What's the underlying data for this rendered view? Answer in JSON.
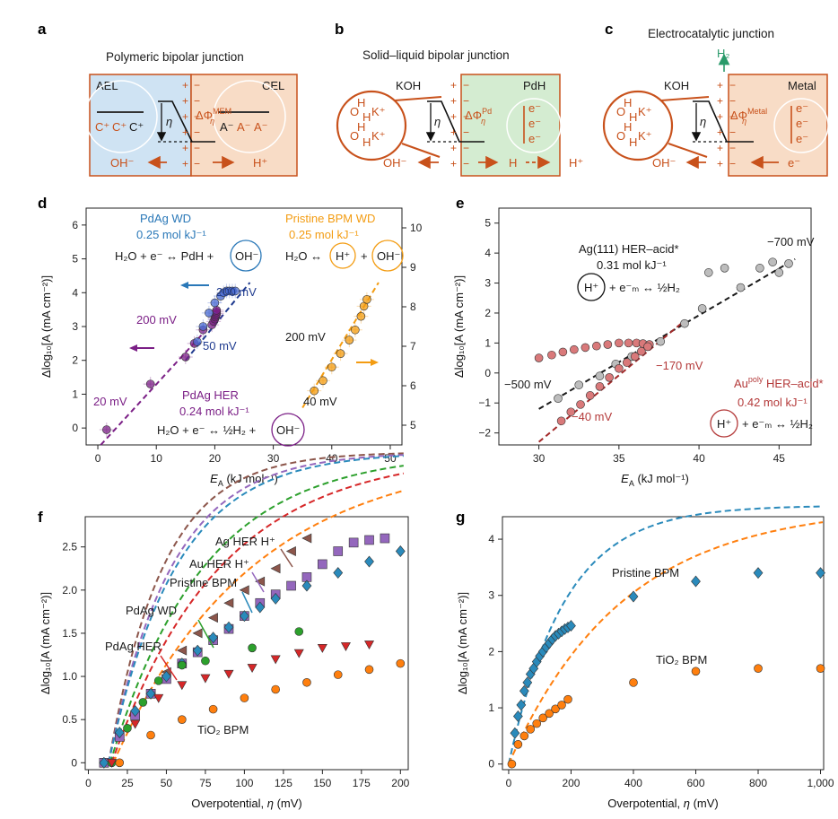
{
  "colors": {
    "orange": "#c8511b",
    "blue_box": "#cfe3f3",
    "orange_box": "#f8dcc6",
    "green_box": "#d4ecd1",
    "purple": "#7b1f86",
    "navy": "#1f3b8f",
    "gold": "#f39c12",
    "grey": "#9a9a9a",
    "red": "#b43a3a",
    "teal_blue": "#2a8abb",
    "violet": "#9467bd",
    "brown": "#8c564b",
    "green": "#2ca02c",
    "crimson": "#d62728",
    "darkorange": "#ff7f0e"
  },
  "panel_a": {
    "letter": "a",
    "title": "Polymeric bipolar junction",
    "left": "AEL",
    "right": "CEL",
    "c_plus": "C⁺",
    "a_minus": "A⁻",
    "eta": "η",
    "phi": "ΔΦ",
    "phi_sup": "MEM",
    "phi_sub": "η",
    "left_ion": "OH⁻",
    "right_ion": "H⁺",
    "plus": "+",
    "minus": "−"
  },
  "panel_b": {
    "letter": "b",
    "title": "Solid–liquid bipolar junction",
    "left": "KOH",
    "right": "PdH",
    "o": "O",
    "h": "H",
    "k": "K⁺",
    "e": "e⁻",
    "eta": "η",
    "phi": "ΔΦ",
    "phi_sup": "Pd",
    "phi_sub": "η",
    "left_ion": "OH⁻",
    "mid": "H",
    "right_ion": "H⁺",
    "plus": "+",
    "minus": "−"
  },
  "panel_c": {
    "letter": "c",
    "title": "Electrocatalytic junction",
    "h2": "H₂",
    "left": "KOH",
    "right": "Metal",
    "o": "O",
    "h": "H",
    "k": "K⁺",
    "e": "e⁻",
    "eta": "η",
    "phi": "ΔΦ",
    "phi_sup": "Metal",
    "phi_sub": "η",
    "left_ion": "OH⁻",
    "right_ion": "e⁻",
    "plus": "+",
    "minus": "−"
  },
  "chart_data": [
    {
      "id": "d",
      "type": "scatter",
      "letter": "d",
      "xlabel": "E",
      "xlabel_sub": "A",
      "xlabel_unit": " (kJ mol⁻¹)",
      "ylabel": "Δlog₁₀[A (mA cm⁻²)]",
      "xlim": [
        -2,
        52
      ],
      "ylim": [
        -0.5,
        6.5
      ],
      "y2lim": [
        4.5,
        10.5
      ],
      "xticks": [
        0,
        10,
        20,
        30,
        40,
        50
      ],
      "yticks": [
        0,
        1,
        2,
        3,
        4,
        5,
        6
      ],
      "y2ticks": [
        5,
        6,
        7,
        8,
        9,
        10
      ],
      "series": [
        {
          "name": "PdAg HER",
          "color": "#7b1f86",
          "x": [
            1.5,
            9,
            15,
            16.5,
            18,
            19.5,
            19.8,
            20,
            20.1,
            20.2,
            20.3,
            20.3,
            20.3
          ],
          "y": [
            -0.05,
            1.3,
            2.1,
            2.5,
            2.9,
            3.05,
            3.15,
            3.22,
            3.28,
            3.33,
            3.38,
            3.43,
            3.48
          ]
        },
        {
          "name": "PdAg WD",
          "color": "#4a6bd1",
          "x": [
            17,
            18,
            19,
            20,
            21,
            21.5,
            22,
            22.5,
            23,
            23.5
          ],
          "y": [
            2.55,
            3.0,
            3.4,
            3.7,
            3.9,
            4.0,
            4.05,
            4.05,
            4.05,
            4.05
          ]
        },
        {
          "name": "Pristine BPM WD",
          "color": "#f39c12",
          "x": [
            37,
            38.5,
            40,
            41.5,
            43,
            44,
            45,
            45.5,
            46
          ],
          "y": [
            1.1,
            1.4,
            1.8,
            2.2,
            2.6,
            2.9,
            3.3,
            3.6,
            3.8
          ]
        }
      ],
      "fits": [
        {
          "color": "#7b1f86",
          "x": [
            0.5,
            18
          ],
          "y": [
            -0.5,
            2.8
          ]
        },
        {
          "color": "#1f3b8f",
          "x": [
            15,
            26
          ],
          "y": [
            2.0,
            4.3
          ]
        },
        {
          "color": "#f39c12",
          "x": [
            35,
            48
          ],
          "y": [
            0.6,
            4.3
          ]
        }
      ],
      "labels": {
        "pdag_wd": "PdAg WD",
        "pdag_wd_val": "0.25 mol kJ⁻¹",
        "wd_eq1": "H₂O + e⁻ ↔ PdH +",
        "oh": "OH⁻",
        "bpm_wd": "Pristine BPM WD",
        "bpm_wd_val": "0.25 mol kJ⁻¹",
        "bpm_eq": "H₂O ↔",
        "hplus": "H⁺",
        "plus": "+",
        "pdag_her": "PdAg HER",
        "pdag_her_val": "0.24 mol kJ⁻¹",
        "her_eq": "H₂O + e⁻ ↔ ½H₂ +",
        "mv200a": "200 mV",
        "mv200b": "200 mV",
        "mv50": "50 mV",
        "mv20": "20 mV",
        "mv200c": "200 mV",
        "mv40": "40 mV"
      }
    },
    {
      "id": "e",
      "type": "scatter",
      "letter": "e",
      "xlabel": "E",
      "xlabel_sub": "A",
      "xlabel_unit": " (kJ mol⁻¹)",
      "ylabel": "Δlog₁₀[A (mA cm⁻²)]",
      "xlim": [
        27.5,
        47
      ],
      "ylim": [
        -2.4,
        5.5
      ],
      "xticks": [
        30,
        35,
        40,
        45
      ],
      "yticks": [
        -2,
        -1,
        0,
        1,
        2,
        3,
        4,
        5
      ],
      "series": [
        {
          "name": "Ag(111) HER-acid*",
          "color": "#bdbdbd",
          "x": [
            31.2,
            32.5,
            33.8,
            34.8,
            35.8,
            36.6,
            37.6,
            39.1,
            40.2,
            40.6,
            41.6,
            42.6,
            43.8,
            44.6,
            45,
            45.6
          ],
          "y": [
            -0.85,
            -0.4,
            -0.1,
            0.3,
            0.55,
            0.9,
            1.05,
            1.65,
            2.15,
            3.35,
            3.5,
            2.85,
            3.5,
            3.7,
            3.35,
            3.65
          ]
        },
        {
          "name": "Au poly HER-acid*",
          "color": "#d9797a",
          "x": [
            30,
            30.8,
            31.5,
            32.2,
            32.9,
            33.6,
            34.3,
            35,
            35.6,
            36.1,
            36.5,
            36.9,
            31.4,
            32,
            32.6,
            33.2,
            33.8,
            34.4,
            35,
            35.5,
            36,
            36.4,
            36.8
          ],
          "y": [
            0.5,
            0.6,
            0.7,
            0.78,
            0.85,
            0.9,
            0.95,
            1.0,
            1.0,
            1.0,
            0.98,
            0.95,
            -1.6,
            -1.3,
            -1.05,
            -0.75,
            -0.45,
            -0.15,
            0.15,
            0.35,
            0.55,
            0.72,
            0.88
          ]
        }
      ],
      "fits": [
        {
          "color": "#1a1a1a",
          "x": [
            30,
            46
          ],
          "y": [
            -1.2,
            3.8
          ]
        },
        {
          "color": "#a32a2a",
          "x": [
            30,
            39
          ],
          "y": [
            -2.3,
            1.7
          ]
        }
      ],
      "labels": {
        "ag": "Ag(111) HER–acid*",
        "ag_val": "0.31 mol kJ⁻¹",
        "ag_eq": "+ e⁻ₘ ↔ ½H₂",
        "hplus": "H⁺",
        "au": "Au",
        "au_sup": "poly",
        "au_rest": " HER–acid*",
        "au_val": "0.42 mol kJ⁻¹",
        "au_eq": "+ e⁻ₘ ↔ ½H₂",
        "mv700": "−700 mV",
        "mv500": "−500 mV",
        "mv170": "−170 mV",
        "mv40": "−40 mV"
      }
    },
    {
      "id": "f",
      "type": "scatter",
      "letter": "f",
      "xlabel": "Overpotential, ",
      "xlabel_it": "η",
      "xlabel_unit": " (mV)",
      "ylabel": "Δlog₁₀[A (mA cm⁻²)]",
      "xlim": [
        -2,
        205
      ],
      "ylim": [
        -0.08,
        2.85
      ],
      "xticks": [
        0,
        25,
        50,
        75,
        100,
        125,
        150,
        175,
        200
      ],
      "yticks": [
        0,
        0.5,
        1.0,
        1.5,
        2.0,
        2.5
      ],
      "ytick_labels": [
        "0",
        "0.5",
        "1.0",
        "1.5",
        "2.0",
        "2.5"
      ],
      "series": [
        {
          "name": "Ag HER H+",
          "color": "#8c564b",
          "marker": "tri-left",
          "x": [
            10,
            20,
            30,
            40,
            50,
            60,
            70,
            80,
            90,
            100,
            110,
            120,
            130,
            140
          ],
          "y": [
            0.0,
            0.3,
            0.55,
            0.8,
            1.05,
            1.3,
            1.5,
            1.68,
            1.85,
            2.0,
            2.1,
            2.25,
            2.45,
            2.6
          ]
        },
        {
          "name": "Au HER H+",
          "color": "#9467bd",
          "marker": "square",
          "x": [
            10,
            20,
            30,
            40,
            50,
            60,
            70,
            80,
            90,
            100,
            110,
            120,
            130,
            140,
            150,
            160,
            170,
            180,
            190
          ],
          "y": [
            0.0,
            0.3,
            0.55,
            0.8,
            0.97,
            1.15,
            1.28,
            1.42,
            1.55,
            1.7,
            1.85,
            1.95,
            2.05,
            2.15,
            2.3,
            2.45,
            2.55,
            2.58,
            2.6
          ]
        },
        {
          "name": "Pristine BPM",
          "color": "#2a8abb",
          "marker": "diamond",
          "x": [
            10,
            20,
            30,
            40,
            50,
            60,
            70,
            80,
            90,
            100,
            110,
            120,
            140,
            160,
            180,
            200
          ],
          "y": [
            0.0,
            0.35,
            0.6,
            0.8,
            1.0,
            1.15,
            1.3,
            1.45,
            1.57,
            1.7,
            1.8,
            1.9,
            2.05,
            2.2,
            2.33,
            2.45
          ]
        },
        {
          "name": "PdAg WD",
          "color": "#2ca02c",
          "marker": "circle",
          "x": [
            15,
            25,
            35,
            45,
            60,
            75,
            105,
            135
          ],
          "y": [
            0.0,
            0.4,
            0.7,
            0.95,
            1.13,
            1.18,
            1.33,
            1.52
          ]
        },
        {
          "name": "PdAg HER",
          "color": "#d62728",
          "marker": "tri-down",
          "x": [
            15,
            30,
            45,
            60,
            75,
            90,
            105,
            120,
            135,
            150,
            165,
            180
          ],
          "y": [
            0.0,
            0.45,
            0.75,
            0.9,
            0.98,
            1.03,
            1.1,
            1.2,
            1.27,
            1.33,
            1.35,
            1.37
          ]
        },
        {
          "name": "TiO2 BPM",
          "color": "#ff7f0e",
          "marker": "circle",
          "x": [
            20,
            40,
            60,
            80,
            100,
            120,
            140,
            160,
            180,
            200
          ],
          "y": [
            0.0,
            0.32,
            0.5,
            0.62,
            0.75,
            0.85,
            0.93,
            1.02,
            1.08,
            1.15
          ]
        }
      ],
      "curves": [
        {
          "color": "#8c564b",
          "k": 0.0285,
          "x0": 13
        },
        {
          "color": "#9467bd",
          "k": 0.0247,
          "x0": 13
        },
        {
          "color": "#2a8abb",
          "k": 0.0231,
          "x0": 13
        },
        {
          "color": "#2ca02c",
          "k": 0.0166,
          "x0": 14
        },
        {
          "color": "#d62728",
          "k": 0.0143,
          "x0": 15
        },
        {
          "color": "#ff7f0e",
          "k": 0.0112,
          "x0": 16
        }
      ],
      "labels": {
        "ag": "Ag HER H⁺",
        "au": "Au HER H⁺",
        "bpm": "Pristine BPM",
        "pdag_wd": "PdAg WD",
        "pdag_her": "PdAg HER",
        "tio2": "TiO₂ BPM"
      }
    },
    {
      "id": "g",
      "type": "scatter",
      "letter": "g",
      "xlabel": "Overpotential, ",
      "xlabel_it": "η",
      "xlabel_unit": " (mV)",
      "ylabel": "Δlog₁₀[A (mA cm⁻²)]",
      "xlim": [
        -20,
        1010
      ],
      "ylim": [
        -0.1,
        4.4
      ],
      "xticks": [
        0,
        200,
        400,
        600,
        800,
        1000
      ],
      "xtick_labels": [
        "0",
        "200",
        "400",
        "600",
        "800",
        "1,000"
      ],
      "yticks": [
        0,
        1,
        2,
        3,
        4
      ],
      "series": [
        {
          "name": "Pristine BPM",
          "color": "#2a8abb",
          "marker": "diamond",
          "x": [
            20,
            30,
            40,
            50,
            60,
            70,
            80,
            90,
            100,
            110,
            120,
            130,
            140,
            150,
            160,
            170,
            180,
            190,
            200,
            400,
            600,
            800,
            1000
          ],
          "y": [
            0.55,
            0.85,
            1.05,
            1.3,
            1.45,
            1.6,
            1.7,
            1.82,
            1.92,
            2.0,
            2.08,
            2.15,
            2.22,
            2.28,
            2.32,
            2.36,
            2.4,
            2.43,
            2.46,
            2.98,
            3.25,
            3.4,
            3.4
          ]
        },
        {
          "name": "TiO2 BPM",
          "color": "#ff7f0e",
          "marker": "circle",
          "x": [
            10,
            30,
            50,
            70,
            90,
            110,
            130,
            150,
            170,
            190,
            400,
            600,
            800,
            1000
          ],
          "y": [
            0.0,
            0.35,
            0.5,
            0.62,
            0.72,
            0.82,
            0.9,
            0.98,
            1.05,
            1.15,
            1.45,
            1.65,
            1.7,
            1.7
          ]
        }
      ],
      "curves": [
        {
          "color": "#2a8abb",
          "k": 0.00553,
          "x0": 0
        },
        {
          "color": "#ff7f0e",
          "k": 0.00272,
          "x0": 0
        }
      ],
      "labels": {
        "bpm": "Pristine BPM",
        "tio2": "TiO₂ BPM"
      }
    }
  ]
}
